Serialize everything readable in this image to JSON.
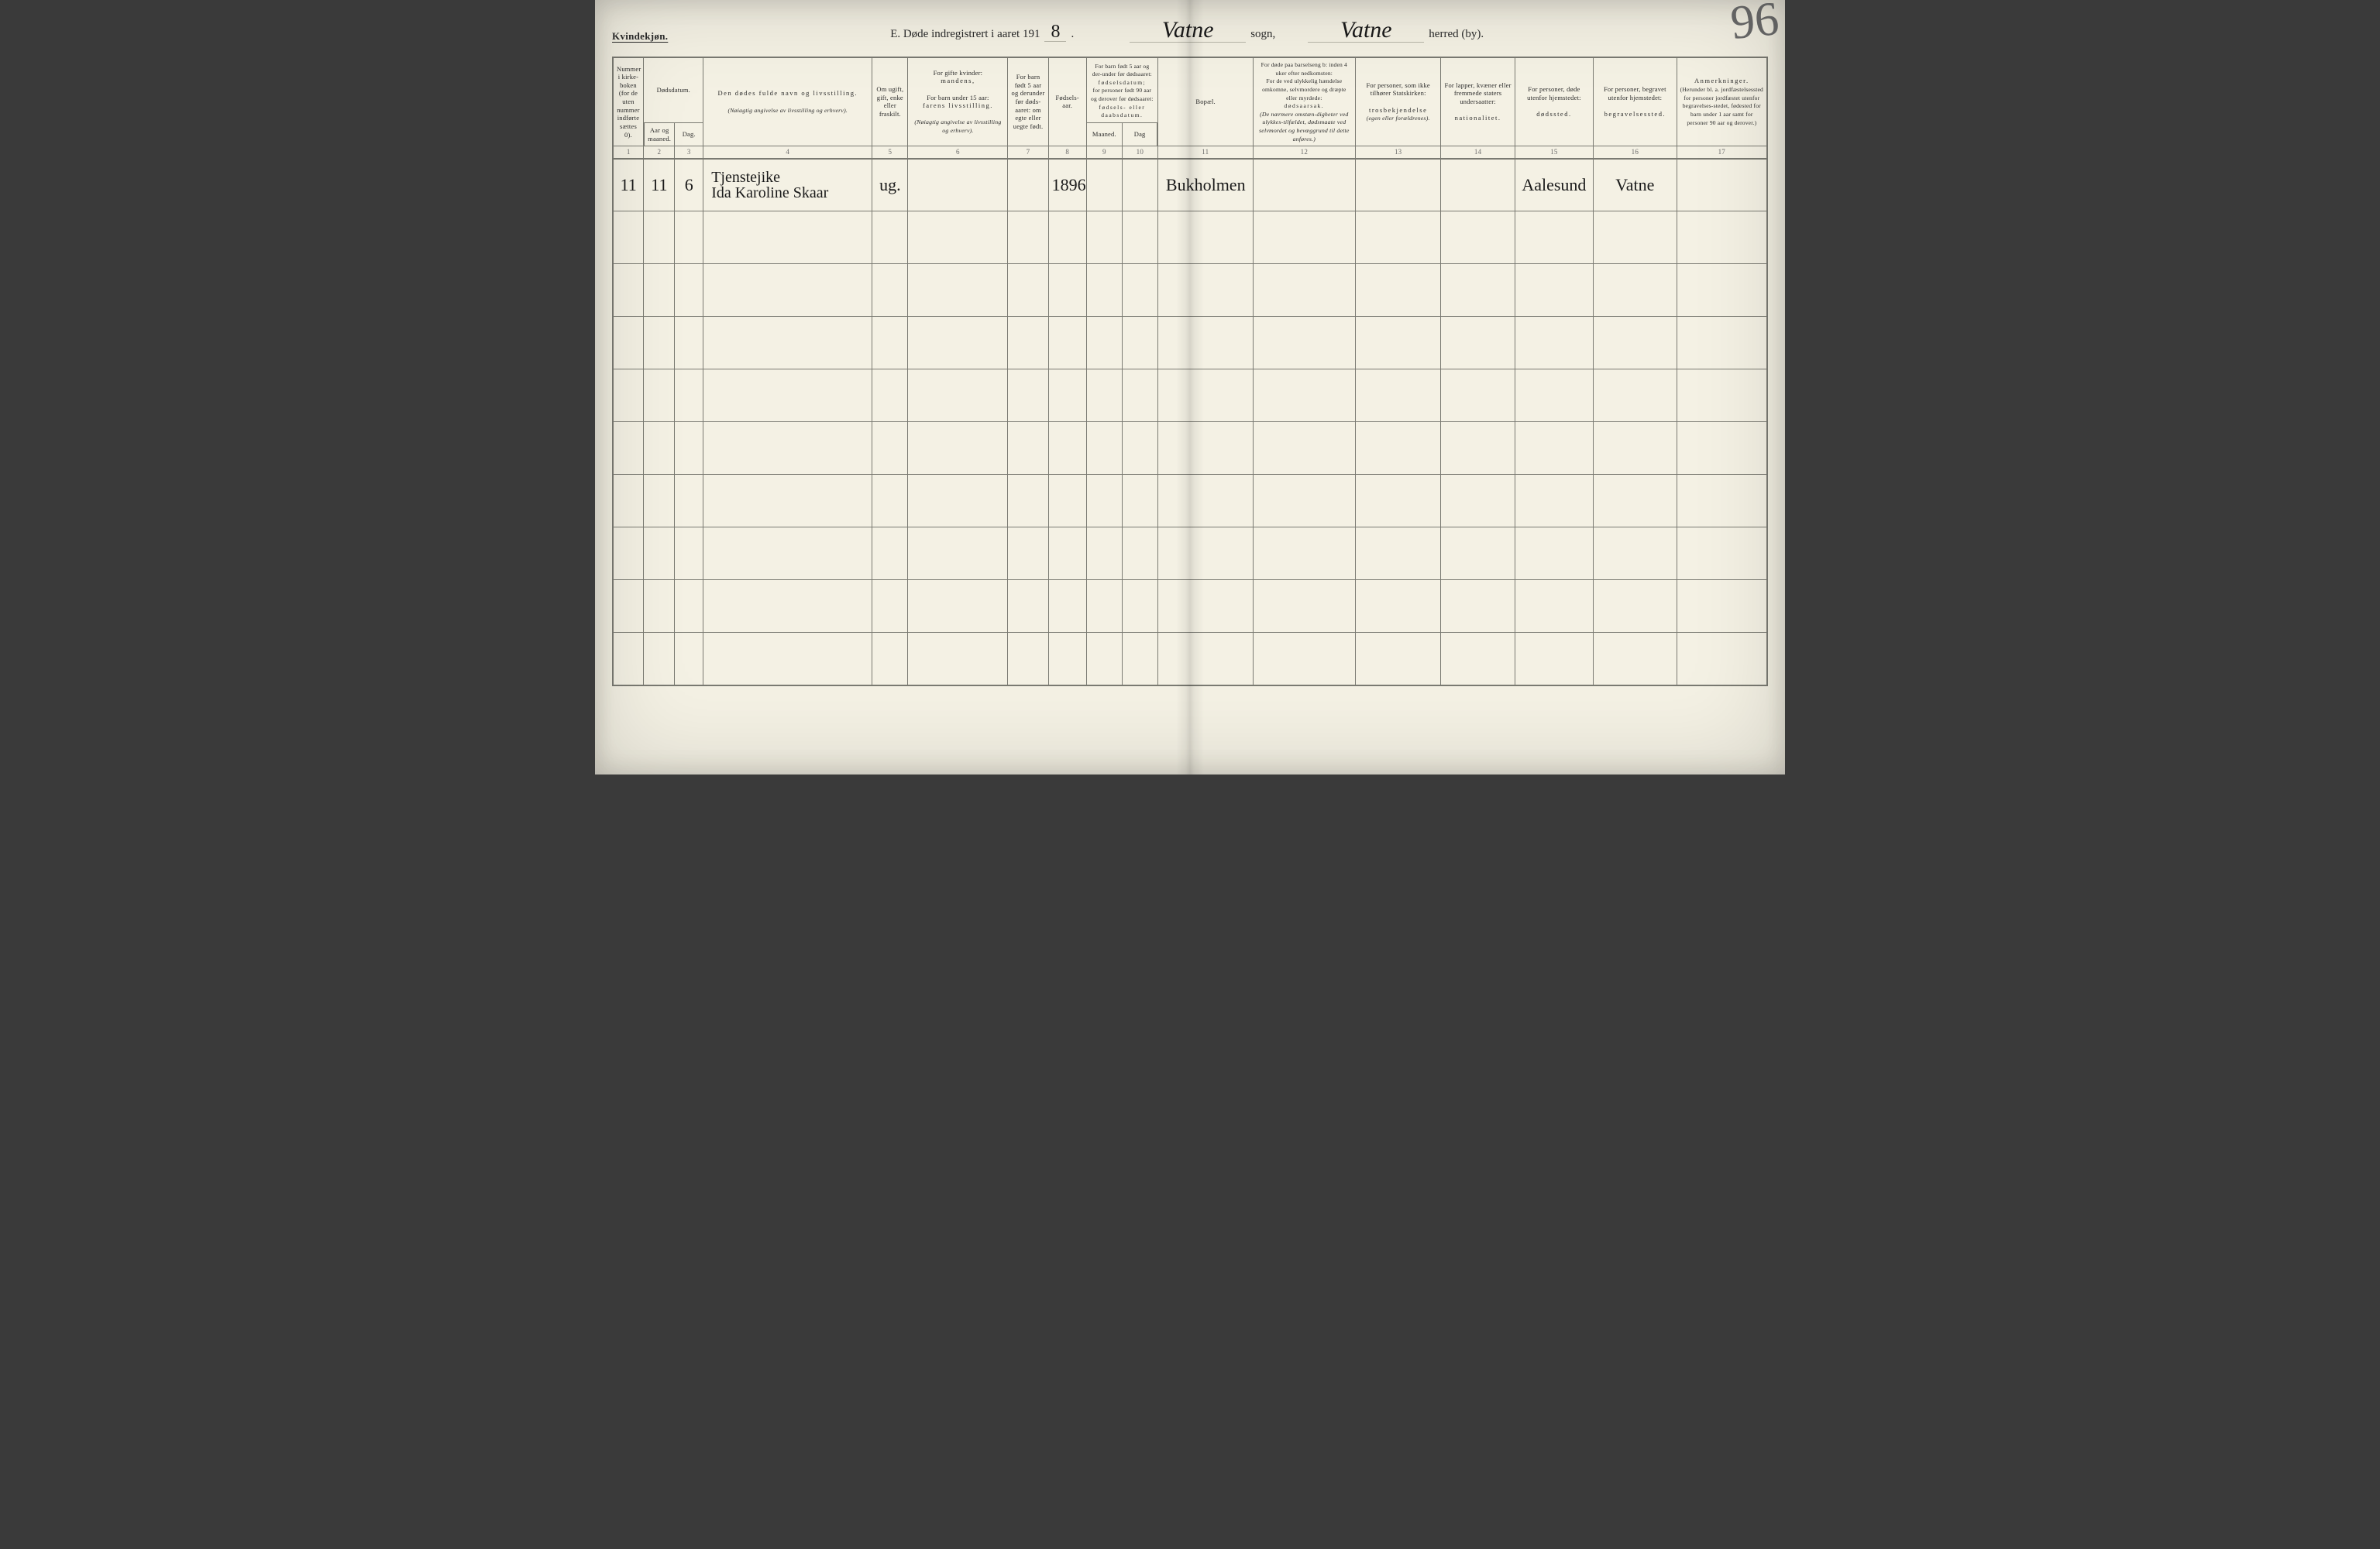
{
  "page": {
    "gender_label": "Kvindekjøn.",
    "title_prefix": "E.  Døde indregistrert i aaret 191",
    "year_digit": "8",
    "year_suffix": ".",
    "sogn_value": "Vatne",
    "sogn_label": "sogn,",
    "herred_value": "Vatne",
    "herred_label": "herred (by).",
    "page_number": "96"
  },
  "columns": {
    "c1": "Nummer i kirke-boken (for de uten nummer indførte sættes 0).",
    "c23_group": "Dødsdatum.",
    "c2": "Aar og maaned.",
    "c3": "Dag.",
    "c4_title": "Den dødes fulde navn og livsstilling.",
    "c4_sub": "(Nøiagtig angivelse av livsstilling og erhverv).",
    "c5": "Om ugift, gift, enke eller fraskilt.",
    "c6_a": "For gifte kvinder:",
    "c6_b_spaced": "mandens,",
    "c6_c": "For barn under 15 aar:",
    "c6_d_spaced": "farens livsstilling.",
    "c6_e": "(Nøiagtig angivelse av livsstilling og erhverv).",
    "c7": "For barn født 5 aar og derunder før døds-aaret: om egte eller uegte født.",
    "c8": "Fødsels-aar.",
    "c910_top_a": "For barn født 5 aar og der-under før dødsaaret:",
    "c910_top_b_spaced": "fødselsdatum;",
    "c910_top_c": "for personer født 90 aar og derover før dødsaaret:",
    "c910_top_d_spaced": "fødsels- eller daabsdatum.",
    "c9": "Maaned.",
    "c10": "Dag",
    "c11": "Bopæl.",
    "c12_a": "For døde paa barselseng b: inden 4 uker efter nedkomsten:",
    "c12_b": "For de ved ulykkelig hændelse omkomne, selvmordere og dræpte eller myrdede:",
    "c12_c_spaced": "dødsaarsak.",
    "c12_d": "(De nærmere omstæn-digheter ved ulykkes-tilfældet, dødsmaate ved selvmordet og bevæggrund til dette anføres.)",
    "c13_a": "For personer, som ikke tilhører Statskirken:",
    "c13_b_spaced": "trosbekjendelse",
    "c13_c": "(egen eller forældrenes).",
    "c14_a": "For lapper, kvæner eller fremmede staters undersaatter:",
    "c14_b_spaced": "nationalitet.",
    "c15_a": "For personer, døde utenfor hjemstedet:",
    "c15_b_spaced": "dødssted.",
    "c16_a": "For personer, begravet utenfor hjemstedet:",
    "c16_b_spaced": "begravelsessted.",
    "c17_title_spaced": "Anmerkninger.",
    "c17_sub": "(Herunder bl. a. jordfæstelsessted for personer jordfæstet utenfor begravelses-stedet, fødested for barn under 1 aar samt for personer 90 aar og derover.)"
  },
  "colnums": [
    "1",
    "2",
    "3",
    "4",
    "5",
    "6",
    "7",
    "8",
    "9",
    "10",
    "11",
    "12",
    "13",
    "14",
    "15",
    "16",
    "17"
  ],
  "rows": [
    {
      "c1": "11",
      "c2": "11",
      "c3": "6",
      "c4_line1": "Tjenstejike",
      "c4_line2": "Ida Karoline Skaar",
      "c5": "ug.",
      "c8": "1896",
      "c11": "Bukholmen",
      "c15": "Aalesund",
      "c16": "Vatne"
    },
    {},
    {},
    {},
    {},
    {},
    {},
    {},
    {},
    {}
  ]
}
